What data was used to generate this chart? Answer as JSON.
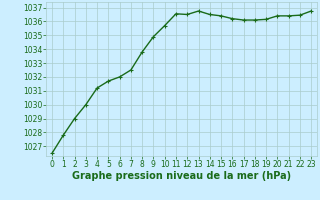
{
  "x": [
    0,
    1,
    2,
    3,
    4,
    5,
    6,
    7,
    8,
    9,
    10,
    11,
    12,
    13,
    14,
    15,
    16,
    17,
    18,
    19,
    20,
    21,
    22,
    23
  ],
  "y": [
    1026.5,
    1027.8,
    1029.0,
    1030.0,
    1031.2,
    1031.7,
    1032.0,
    1032.5,
    1033.8,
    1034.9,
    1035.7,
    1036.55,
    1036.5,
    1036.75,
    1036.5,
    1036.4,
    1036.2,
    1036.1,
    1036.1,
    1036.15,
    1036.4,
    1036.4,
    1036.45,
    1036.75
  ],
  "line_color": "#1a6b1a",
  "marker": "+",
  "marker_size": 3,
  "bg_color": "#cceeff",
  "grid_color": "#aacccc",
  "xlabel": "Graphe pression niveau de la mer (hPa)",
  "xlabel_color": "#1a6b1a",
  "tick_color": "#1a6b1a",
  "ylim": [
    1026.3,
    1037.4
  ],
  "xlim": [
    -0.5,
    23.5
  ],
  "yticks": [
    1027,
    1028,
    1029,
    1030,
    1031,
    1032,
    1033,
    1034,
    1035,
    1036,
    1037
  ],
  "xticks": [
    0,
    1,
    2,
    3,
    4,
    5,
    6,
    7,
    8,
    9,
    10,
    11,
    12,
    13,
    14,
    15,
    16,
    17,
    18,
    19,
    20,
    21,
    22,
    23
  ],
  "line_width": 1.0,
  "marker_color": "#1a6b1a",
  "xlabel_fontsize": 7.0,
  "tick_fontsize": 5.5,
  "xlabel_fontweight": "bold"
}
